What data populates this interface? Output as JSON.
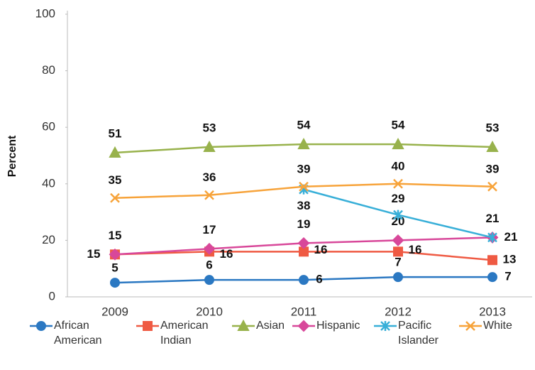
{
  "chart_data": {
    "type": "line",
    "y_label": "Percent",
    "categories": [
      "2009",
      "2010",
      "2011",
      "2012",
      "2013"
    ],
    "ylim": [
      0,
      100
    ],
    "yticks": [
      0,
      20,
      40,
      60,
      80,
      100
    ],
    "series": [
      {
        "name": "African American",
        "color": "#2b78c2",
        "values": [
          5,
          6,
          6,
          7,
          7
        ]
      },
      {
        "name": "American Indian",
        "color": "#ef5a43",
        "values": [
          15,
          16,
          16,
          16,
          13
        ]
      },
      {
        "name": "Asian",
        "color": "#98b24c",
        "values": [
          51,
          53,
          54,
          54,
          53
        ]
      },
      {
        "name": "Hispanic",
        "color": "#d8489a",
        "values": [
          15,
          17,
          19,
          20,
          21
        ]
      },
      {
        "name": "Pacific Islander",
        "color": "#38afd8",
        "values": [
          null,
          null,
          38,
          29,
          21
        ]
      },
      {
        "name": "White",
        "color": "#f7a33a",
        "values": [
          35,
          36,
          39,
          40,
          39
        ]
      }
    ]
  }
}
